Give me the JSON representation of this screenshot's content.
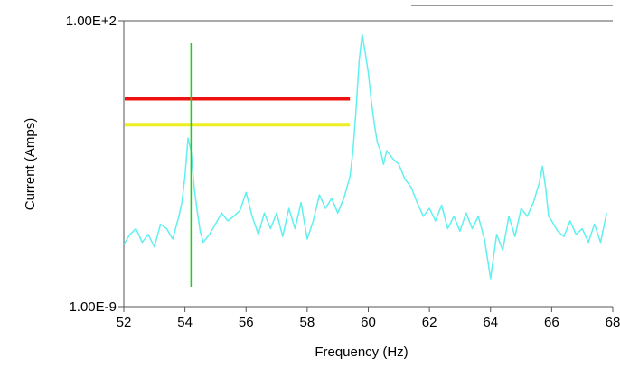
{
  "chart_data": {
    "type": "line",
    "title": "",
    "xlabel": "Frequency (Hz)",
    "ylabel": "Current (Amps)",
    "xlim": [
      52,
      68
    ],
    "ylim": [
      1e-09,
      100
    ],
    "yscale": "log",
    "x_ticks": [
      52,
      54,
      56,
      58,
      60,
      62,
      64,
      66,
      68
    ],
    "x_tick_labels": [
      "52",
      "54",
      "56",
      "58",
      "60",
      "62",
      "64",
      "66",
      "68"
    ],
    "y_tick_labels": [
      "1.00E+2",
      "1.00E-9"
    ],
    "grid": false,
    "legend": "none",
    "series": [
      {
        "color": "#5ff0f0",
        "x": [
          52.0,
          52.2,
          52.4,
          52.6,
          52.8,
          53.0,
          53.2,
          53.4,
          53.6,
          53.8,
          53.9,
          54.0,
          54.1,
          54.2,
          54.3,
          54.4,
          54.5,
          54.6,
          54.8,
          55.0,
          55.2,
          55.4,
          55.6,
          55.8,
          56.0,
          56.2,
          56.4,
          56.6,
          56.8,
          57.0,
          57.2,
          57.4,
          57.6,
          57.8,
          58.0,
          58.2,
          58.4,
          58.6,
          58.8,
          59.0,
          59.2,
          59.4,
          59.5,
          59.6,
          59.7,
          59.8,
          59.9,
          60.0,
          60.1,
          60.2,
          60.3,
          60.4,
          60.5,
          60.6,
          60.8,
          61.0,
          61.2,
          61.4,
          61.6,
          61.8,
          62.0,
          62.2,
          62.4,
          62.6,
          62.8,
          63.0,
          63.2,
          63.4,
          63.6,
          63.8,
          64.0,
          64.2,
          64.4,
          64.6,
          64.8,
          65.0,
          65.2,
          65.4,
          65.6,
          65.7,
          65.8,
          65.9,
          66.0,
          66.2,
          66.4,
          66.6,
          66.8,
          67.0,
          67.2,
          67.4,
          67.6,
          67.8
        ],
        "y": [
          2.5e-07,
          6e-07,
          1e-06,
          3e-07,
          6e-07,
          2e-07,
          1.5e-06,
          1e-06,
          4e-07,
          3e-06,
          1e-05,
          0.0001,
          0.003,
          0.001,
          4e-05,
          5e-06,
          8e-07,
          3e-07,
          6e-07,
          1.5e-06,
          4e-06,
          2e-06,
          3e-06,
          5e-06,
          2.5e-05,
          3e-06,
          6e-07,
          4e-06,
          1e-06,
          4e-06,
          5e-07,
          6e-06,
          1e-06,
          1e-05,
          4e-07,
          2e-06,
          2e-05,
          6e-06,
          1.5e-05,
          4e-06,
          1.5e-05,
          0.0001,
          0.001,
          0.04,
          3.0,
          30.0,
          6.0,
          1.0,
          0.08,
          0.01,
          0.002,
          0.001,
          0.0003,
          0.001,
          0.0005,
          0.0003,
          8e-05,
          4e-05,
          1e-05,
          3e-06,
          6e-06,
          2e-06,
          8e-06,
          1e-06,
          3e-06,
          8e-07,
          4e-06,
          1e-06,
          3e-06,
          4e-07,
          1.2e-08,
          6e-07,
          1.5e-07,
          3e-06,
          5e-07,
          6e-06,
          3e-06,
          1e-05,
          6e-05,
          0.00025,
          4e-05,
          3e-06,
          2e-06,
          8e-07,
          5e-07,
          2e-06,
          6e-07,
          1e-06,
          3e-07,
          1.5e-06,
          3e-07,
          4e-06
        ]
      }
    ],
    "annotations": [
      {
        "type": "vertical_marker",
        "x": 54.2,
        "color": "#22cc22"
      },
      {
        "type": "horizontal_line",
        "y": 0.1,
        "x_range": [
          52,
          59.4
        ],
        "color": "#ee1111"
      },
      {
        "type": "horizontal_line",
        "y": 0.01,
        "x_range": [
          52,
          59.4
        ],
        "color": "#eeee22"
      }
    ]
  }
}
